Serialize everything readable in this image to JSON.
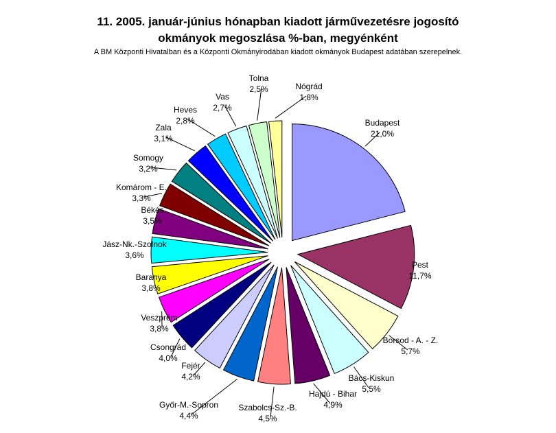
{
  "title_line1": "11. 2005. január-június hónapban kiadott járművezetésre jogosító",
  "title_line2": "okmányok megoszlása %-ban, megyénként",
  "subtitle": "A BM Központi Hivatalban és a Központi Okmányirodában kiadott okmányok Budapest adatában szerepelnek.",
  "chart_data": {
    "type": "pie",
    "title": "11. 2005. január-június hónapban kiadott járművezetésre jogosító okmányok megoszlása %-ban, megyénként",
    "subtitle": "A BM Központi Hivatalban és a Központi Okmányirodában kiadott okmányok Budapest adatában szerepelnek.",
    "exploded": true,
    "slices": [
      {
        "name": "Budapest",
        "value": 21.0,
        "label": "21,0%",
        "color": "#9999ff"
      },
      {
        "name": "Pest",
        "value": 11.7,
        "label": "11,7%",
        "color": "#993366"
      },
      {
        "name": "Borsod - A. - Z.",
        "value": 5.7,
        "label": "5,7%",
        "color": "#ffffcc"
      },
      {
        "name": "Bács-Kiskun",
        "value": 5.5,
        "label": "5,5%",
        "color": "#ccffff"
      },
      {
        "name": "Hajdú - Bihar",
        "value": 4.9,
        "label": "4,9%",
        "color": "#660066"
      },
      {
        "name": "Szabolcs-Sz.-B.",
        "value": 4.5,
        "label": "4,5%",
        "color": "#ff8080"
      },
      {
        "name": "Győr-M.-Sopron",
        "value": 4.4,
        "label": "4,4%",
        "color": "#0066cc"
      },
      {
        "name": "Fejér",
        "value": 4.2,
        "label": "4,2%",
        "color": "#ccccff"
      },
      {
        "name": "Csongrád",
        "value": 4.0,
        "label": "4,0%",
        "color": "#000080"
      },
      {
        "name": "Veszprém",
        "value": 3.8,
        "label": "3,8%",
        "color": "#ff00ff"
      },
      {
        "name": "Baranya",
        "value": 3.8,
        "label": "3,8%",
        "color": "#ffff00"
      },
      {
        "name": "Jász-Nk.-Szolnok",
        "value": 3.6,
        "label": "3,6%",
        "color": "#00ffff"
      },
      {
        "name": "Békés",
        "value": 3.5,
        "label": "3,5%",
        "color": "#800080"
      },
      {
        "name": "Komárom - E.",
        "value": 3.3,
        "label": "3,3%",
        "color": "#800000"
      },
      {
        "name": "Somogy",
        "value": 3.2,
        "label": "3,2%",
        "color": "#008080"
      },
      {
        "name": "Zala",
        "value": 3.1,
        "label": "3,1%",
        "color": "#0000ff"
      },
      {
        "name": "Heves",
        "value": 2.8,
        "label": "2,8%",
        "color": "#00ccff"
      },
      {
        "name": "Vas",
        "value": 2.7,
        "label": "2,7%",
        "color": "#ccffff"
      },
      {
        "name": "Tolna",
        "value": 2.5,
        "label": "2,5%",
        "color": "#ccffcc"
      },
      {
        "name": "Nógrád",
        "value": 1.8,
        "label": "1,8%",
        "color": "#ffff99"
      }
    ]
  }
}
